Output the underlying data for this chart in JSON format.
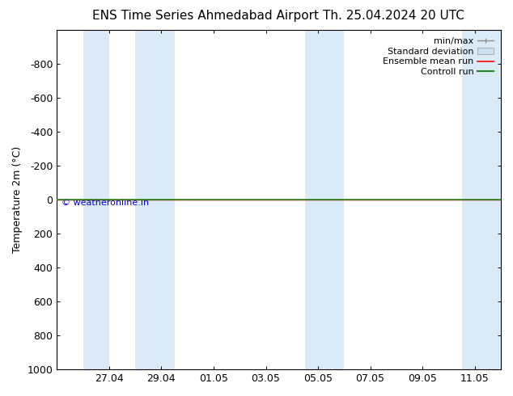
{
  "title_left": "ENS Time Series Ahmedabad Airport",
  "title_right": "Th. 25.04.2024 20 UTC",
  "ylabel": "Temperature 2m (°C)",
  "watermark": "© weatheronline.in",
  "ylim_bottom": 1000,
  "ylim_top": -1000,
  "yticks": [
    -800,
    -600,
    -400,
    -200,
    0,
    200,
    400,
    600,
    800,
    1000
  ],
  "ytick_labels": [
    "-800",
    "-600",
    "-400",
    "-200",
    "0",
    "200",
    "400",
    "600",
    "800",
    "1000"
  ],
  "xtick_labels": [
    "27.04",
    "29.04",
    "01.05",
    "03.05",
    "05.05",
    "07.05",
    "09.05",
    "11.05"
  ],
  "xtick_positions": [
    2,
    4,
    6,
    8,
    10,
    12,
    14,
    16
  ],
  "bg_color": "#ffffff",
  "plot_bg_color": "#ffffff",
  "band_color": "#daeaf7",
  "band_ranges": [
    [
      1.0,
      2.0
    ],
    [
      3.0,
      4.5
    ],
    [
      9.5,
      11.0
    ],
    [
      15.5,
      17.0
    ]
  ],
  "green_line_color": "#228B22",
  "red_line_color": "#ff0000",
  "legend_minmax_color": "#909090",
  "legend_stddev_color": "#cce0f0",
  "title_fontsize": 11,
  "axis_fontsize": 9,
  "tick_fontsize": 9,
  "legend_fontsize": 8
}
